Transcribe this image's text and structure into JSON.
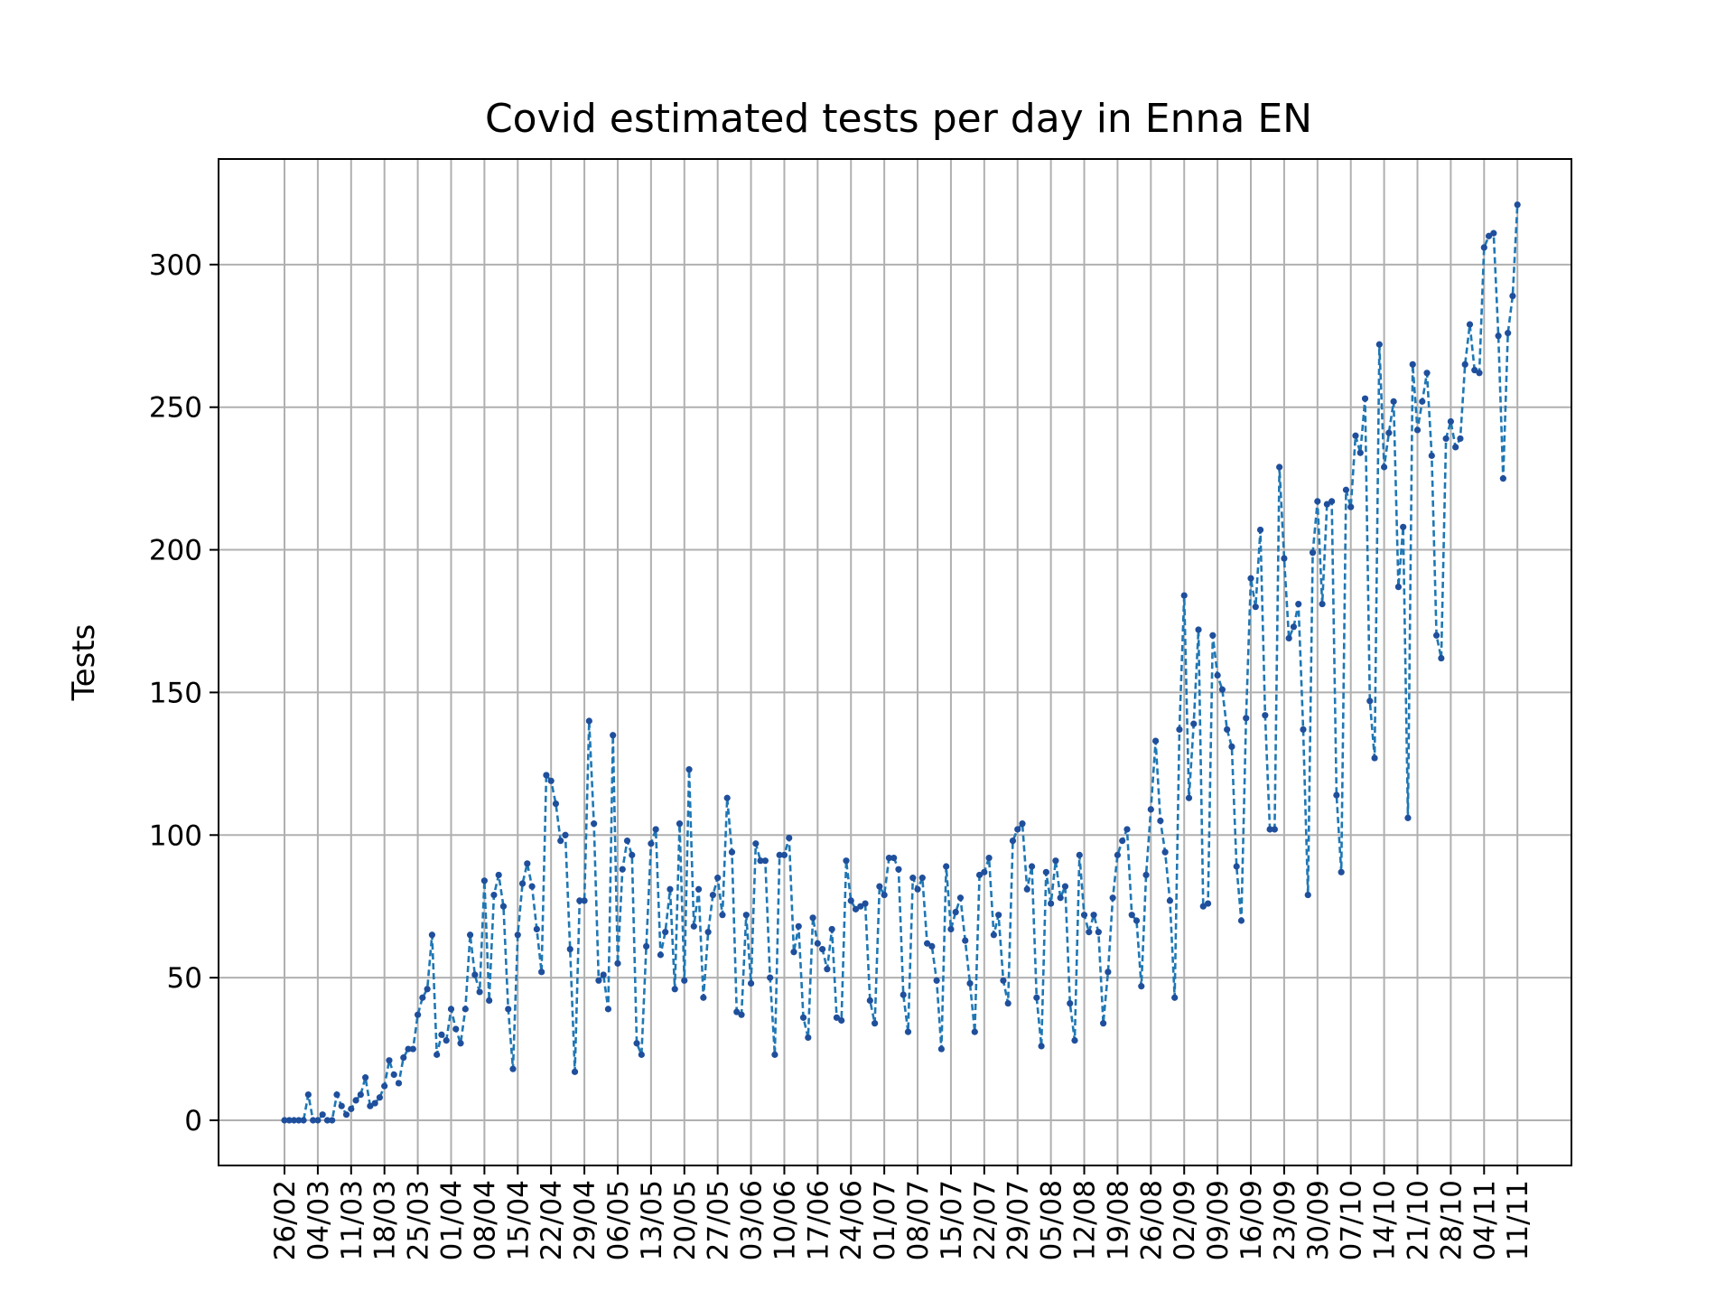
{
  "chart_data": {
    "type": "line",
    "title": "Covid estimated tests per day in Enna EN",
    "xlabel": "",
    "ylabel": "Tests",
    "ylim": [
      -15.5,
      338.5
    ],
    "yticks": [
      0,
      50,
      100,
      150,
      200,
      250,
      300
    ],
    "grid": true,
    "style": {
      "line_color": "#1f77b4",
      "marker_color": "#1f4f9c",
      "line_dash": "dashed",
      "marker": "dot"
    },
    "xtick_labels": [
      "26/02",
      "04/03",
      "11/03",
      "18/03",
      "25/03",
      "01/04",
      "08/04",
      "15/04",
      "22/04",
      "29/04",
      "06/05",
      "13/05",
      "20/05",
      "27/05",
      "03/06",
      "10/06",
      "17/06",
      "24/06",
      "01/07",
      "08/07",
      "15/07",
      "22/07",
      "29/07",
      "05/08",
      "12/08",
      "19/08",
      "26/08",
      "02/09",
      "09/09",
      "16/09",
      "23/09",
      "30/09",
      "07/10",
      "14/10",
      "21/10",
      "28/10",
      "04/11",
      "11/11"
    ],
    "x_start": "26/02",
    "series": [
      {
        "name": "",
        "values": [
          0,
          0,
          0,
          0,
          0,
          9,
          0,
          0,
          2,
          0,
          0,
          9,
          5,
          2,
          4,
          7,
          9,
          15,
          5,
          6,
          8,
          12,
          21,
          16,
          13,
          22,
          25,
          25,
          37,
          43,
          46,
          65,
          23,
          30,
          28,
          39,
          32,
          27,
          39,
          65,
          51,
          45,
          84,
          42,
          79,
          86,
          75,
          39,
          18,
          65,
          83,
          90,
          82,
          67,
          52,
          121,
          119,
          111,
          98,
          100,
          60,
          17,
          77,
          77,
          140,
          104,
          49,
          51,
          39,
          135,
          55,
          88,
          98,
          93,
          27,
          23,
          61,
          97,
          102,
          58,
          66,
          81,
          46,
          104,
          49,
          123,
          68,
          81,
          43,
          66,
          79,
          85,
          72,
          113,
          94,
          38,
          37,
          72,
          48,
          97,
          91,
          91,
          50,
          23,
          93,
          93,
          99,
          59,
          68,
          36,
          29,
          71,
          62,
          60,
          53,
          67,
          36,
          35,
          91,
          77,
          74,
          75,
          76,
          42,
          34,
          82,
          79,
          92,
          92,
          88,
          44,
          31,
          85,
          81,
          85,
          62,
          61,
          49,
          25,
          89,
          67,
          73,
          78,
          63,
          48,
          31,
          86,
          87,
          92,
          65,
          72,
          49,
          41,
          98,
          102,
          104,
          81,
          89,
          43,
          26,
          87,
          76,
          91,
          78,
          82,
          41,
          28,
          93,
          72,
          66,
          72,
          66,
          34,
          52,
          78,
          93,
          98,
          102,
          72,
          70,
          47,
          86,
          109,
          133,
          105,
          94,
          77,
          43,
          137,
          184,
          113,
          139,
          172,
          75,
          76,
          170,
          156,
          151,
          137,
          131,
          89,
          70,
          141,
          190,
          180,
          207,
          142,
          102,
          102,
          229,
          197,
          169,
          173,
          181,
          137,
          79,
          199,
          217,
          181,
          216,
          217,
          114,
          87,
          221,
          215,
          240,
          234,
          253,
          147,
          127,
          272,
          229,
          241,
          252,
          187,
          208,
          106,
          265,
          242,
          252,
          262,
          233,
          170,
          162,
          239,
          245,
          236,
          239,
          265,
          279,
          263,
          262,
          306,
          310,
          311,
          275,
          225,
          276,
          289,
          321
        ]
      }
    ]
  }
}
